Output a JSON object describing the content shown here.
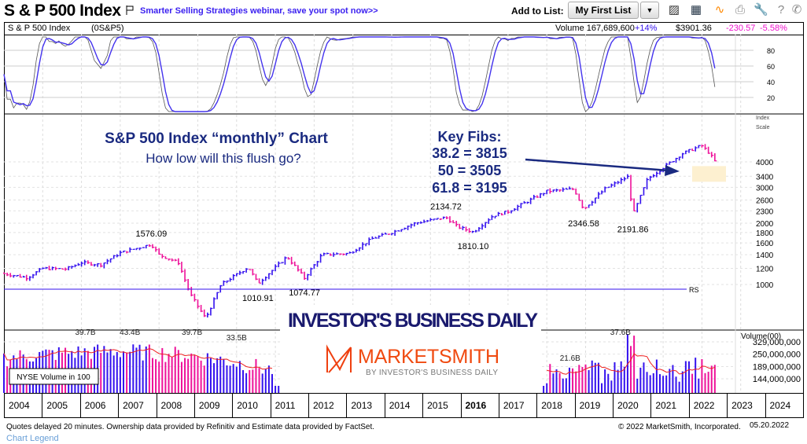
{
  "header": {
    "title": "S & P 500 Index",
    "promo": "Smarter Selling Strategies webinar, save your spot now>>",
    "add_to_list_label": "Add to List:",
    "list_button": "My First List",
    "dropdown_icon": "caret-down-icon",
    "toolbar_icons": [
      "chart-icon",
      "layout-grid-icon",
      "line-chart-icon",
      "printer-icon",
      "wrench-icon",
      "help-icon",
      "phone-icon"
    ]
  },
  "info": {
    "name": "S & P 500 Index",
    "symbol": "(0S&P5)",
    "volume": "Volume 167,689,600",
    "volume_change": "+14%",
    "price": "$3901.36",
    "change": "-230.57",
    "change_pct": "-5.58%"
  },
  "colors": {
    "up": "#3311ee",
    "down": "#ee1199",
    "ma": "#ee2222",
    "navy": "#1a2a80",
    "fib_zone": "#fdf0d0",
    "change": "#ee11cc"
  },
  "overlay": {
    "title": "S&P 500 Index “monthly” Chart",
    "subtitle": "How low will this flush go?",
    "fibs_title": "Key Fibs:",
    "fibs": [
      "38.2 =  3815",
      "50 =  3505",
      "61.8 =  3195"
    ]
  },
  "logos": {
    "ibd": "INVESTOR'S BUSINESS DAILY",
    "marketsmith": "MARKETSMITH",
    "marketsmith_sub": "BY INVESTOR'S BUSINESS DAILY"
  },
  "chart_data": {
    "type": "ohlc-bar",
    "price_axis": {
      "title": [
        "Index",
        "Scale"
      ],
      "scale": "log",
      "ticks": [
        1000,
        1200,
        1400,
        1600,
        1800,
        2000,
        2300,
        2600,
        3000,
        3400,
        4000
      ]
    },
    "x_axis": {
      "labels": [
        "2004",
        "2005",
        "2006",
        "2007",
        "2008",
        "2009",
        "2010",
        "2011",
        "2012",
        "2013",
        "2014",
        "2015",
        "2016",
        "2017",
        "2018",
        "2019",
        "2020",
        "2021",
        "2022",
        "2023",
        "2024"
      ],
      "bold": "2016"
    },
    "price_path": [
      [
        2004.0,
        1130
      ],
      [
        2004.6,
        1080
      ],
      [
        2005.0,
        1200
      ],
      [
        2005.6,
        1190
      ],
      [
        2006.0,
        1280
      ],
      [
        2006.5,
        1250
      ],
      [
        2007.0,
        1430
      ],
      [
        2007.8,
        1576
      ],
      [
        2008.0,
        1400
      ],
      [
        2008.5,
        1280
      ],
      [
        2008.8,
        900
      ],
      [
        2009.2,
        680
      ],
      [
        2009.6,
        1000
      ],
      [
        2010.3,
        1217
      ],
      [
        2010.55,
        1011
      ],
      [
        2011.3,
        1370
      ],
      [
        2011.75,
        1075
      ],
      [
        2012.2,
        1400
      ],
      [
        2012.9,
        1420
      ],
      [
        2013.5,
        1680
      ],
      [
        2014.0,
        1800
      ],
      [
        2014.6,
        2000
      ],
      [
        2015.4,
        2135
      ],
      [
        2015.7,
        1920
      ],
      [
        2016.1,
        1810
      ],
      [
        2016.6,
        2170
      ],
      [
        2017.0,
        2280
      ],
      [
        2018.0,
        2870
      ],
      [
        2018.7,
        2940
      ],
      [
        2018.95,
        2347
      ],
      [
        2019.5,
        2950
      ],
      [
        2020.1,
        3390
      ],
      [
        2020.22,
        2192
      ],
      [
        2020.6,
        3300
      ],
      [
        2021.0,
        3750
      ],
      [
        2021.5,
        4400
      ],
      [
        2021.99,
        4818
      ],
      [
        2022.2,
        4400
      ],
      [
        2022.38,
        3900
      ]
    ],
    "annotations": [
      {
        "text": "1576.09",
        "year": 2007.8
      },
      {
        "text": "1010.91",
        "year": 2010.55
      },
      {
        "text": "1074.77",
        "year": 2011.75
      },
      {
        "text": "2134.72",
        "year": 2015.4
      },
      {
        "text": "1810.10",
        "year": 2016.1
      },
      {
        "text": "2346.58",
        "year": 2018.95
      },
      {
        "text": "2191.86",
        "year": 2020.22
      }
    ],
    "rs_line": {
      "label": "RS"
    },
    "fib_zone": [
      3195,
      3815
    ],
    "oscillator": {
      "ticks": [
        80,
        60,
        40,
        20
      ]
    },
    "volume": {
      "title": "Volume(00)",
      "ticks": [
        "329,000,000",
        "250,000,000",
        "189,000,000",
        "144,000,000"
      ],
      "tick_values": [
        329,
        250,
        189,
        144
      ],
      "legend": "NYSE Volume in 100",
      "labels": [
        {
          "text": "39.7B",
          "year": 2006.1
        },
        {
          "text": "43.4B",
          "year": 2007.25
        },
        {
          "text": "39.7B",
          "year": 2008.85
        },
        {
          "text": "33.5B",
          "year": 2010.0
        },
        {
          "text": "21.6B",
          "year": 2018.6
        },
        {
          "text": "37.6B",
          "year": 2019.9
        }
      ]
    }
  },
  "footer": {
    "disclaimer": "Quotes delayed 20 minutes. Ownership data provided by Refinitiv and Estimate data provided by FactSet.",
    "copyright": "© 2022 MarketSmith, Incorporated.",
    "date": "05.20.2022",
    "legend_link": "Chart Legend"
  }
}
